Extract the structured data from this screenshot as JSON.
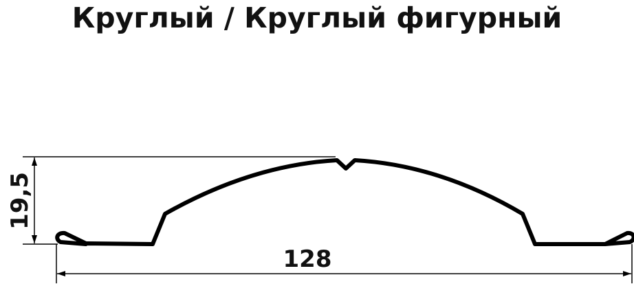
{
  "title": "Круглый / Круглый фигурный",
  "dimensions": {
    "height_label": "19,5",
    "width_label": "128"
  },
  "colors": {
    "stroke": "#000000",
    "text": "#111111"
  }
}
